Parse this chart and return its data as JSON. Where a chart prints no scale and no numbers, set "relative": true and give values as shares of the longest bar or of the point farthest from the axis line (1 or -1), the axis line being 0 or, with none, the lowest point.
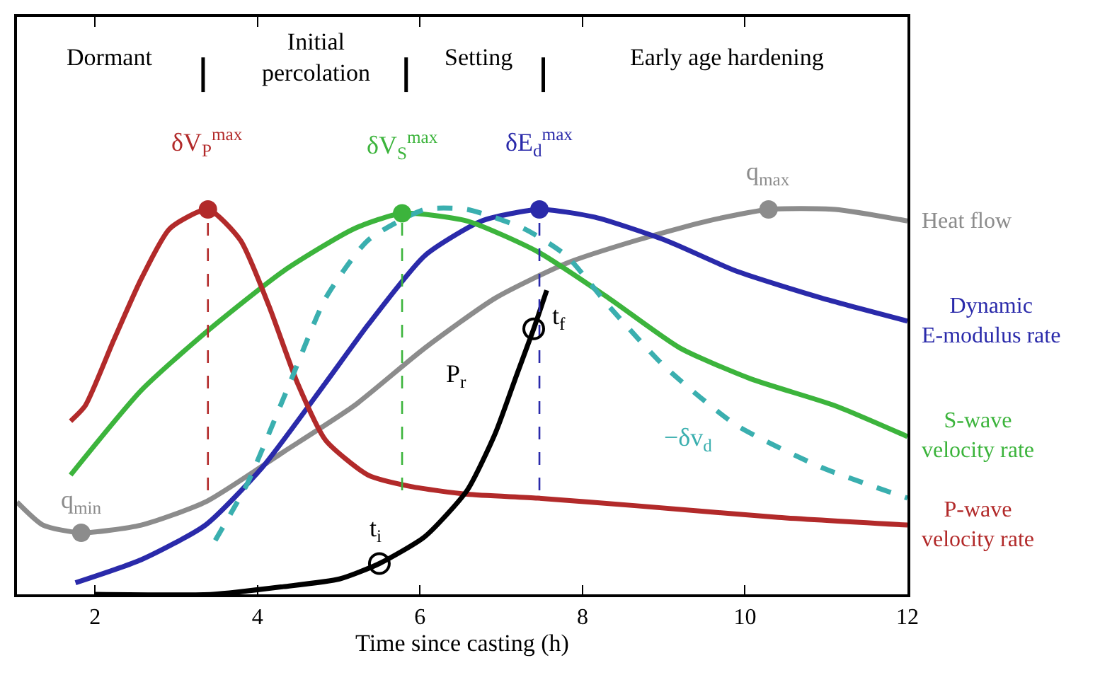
{
  "chart_data": {
    "type": "line",
    "relative": true,
    "xlabel": "Time since casting (h)",
    "xlim": [
      1.04,
      12
    ],
    "xticks": [
      2,
      4,
      6,
      8,
      10,
      12
    ],
    "grid": false,
    "legend": false,
    "tick_labels": "x",
    "series": [
      {
        "name": "Heat flow",
        "color": "#8c8c8c",
        "x": [
          1.04,
          1.36,
          1.83,
          2.57,
          3.36,
          4.32,
          5.19,
          6.06,
          6.93,
          7.8,
          8.67,
          9.54,
          10.29,
          11.11,
          12
        ],
        "values": [
          0.24,
          0.18,
          0.16,
          0.18,
          0.24,
          0.37,
          0.49,
          0.64,
          0.77,
          0.86,
          0.92,
          0.97,
          1.0,
          1.0,
          0.97
        ]
      },
      {
        "name": "Dynamic\nE-modulus rate",
        "color": "#2a2aaa",
        "x": [
          1.76,
          2.57,
          3.36,
          4.06,
          4.84,
          5.36,
          6.06,
          6.76,
          7.47,
          8.15,
          9.02,
          9.89,
          10.94,
          12
        ],
        "values": [
          0.03,
          0.09,
          0.18,
          0.33,
          0.55,
          0.7,
          0.88,
          0.97,
          1.0,
          0.98,
          0.92,
          0.84,
          0.77,
          0.71
        ]
      },
      {
        "name": "S-wave\nvelocity rate",
        "color": "#3cb43c",
        "x": [
          1.7,
          2.57,
          3.36,
          4.32,
          5.19,
          5.78,
          6.58,
          7.45,
          8.32,
          9.2,
          10.07,
          11.11,
          12
        ],
        "values": [
          0.31,
          0.53,
          0.68,
          0.84,
          0.95,
          0.99,
          0.97,
          0.89,
          0.77,
          0.64,
          0.56,
          0.49,
          0.41
        ]
      },
      {
        "name": "P-wave\nvelocity rate",
        "color": "#b22a2a",
        "x": [
          1.7,
          1.88,
          2.23,
          2.57,
          2.92,
          3.39,
          3.79,
          4.14,
          4.49,
          4.84,
          5.36,
          5.89,
          6.58,
          7.45,
          8.67,
          10.41,
          12
        ],
        "values": [
          0.45,
          0.49,
          0.66,
          0.82,
          0.95,
          1.0,
          0.92,
          0.75,
          0.55,
          0.4,
          0.31,
          0.28,
          0.26,
          0.25,
          0.23,
          0.2,
          0.18
        ]
      },
      {
        "color": "#3aafaf",
        "line_style": "dashed",
        "x": [
          3.48,
          3.88,
          4.4,
          4.84,
          5.36,
          6.06,
          6.58,
          7.28,
          7.8,
          8.32,
          9.02,
          9.89,
          10.94,
          12
        ],
        "values": [
          0.14,
          0.29,
          0.55,
          0.77,
          0.92,
          1.0,
          1.0,
          0.95,
          0.88,
          0.75,
          0.59,
          0.44,
          0.33,
          0.25
        ]
      },
      {
        "color": "#000000",
        "x": [
          2.0,
          3.45,
          4.32,
          5.01,
          5.5,
          6.06,
          6.58,
          6.93,
          7.19,
          7.4,
          7.56
        ],
        "values": [
          0.0,
          0.0,
          0.02,
          0.04,
          0.08,
          0.15,
          0.27,
          0.42,
          0.57,
          0.69,
          0.79
        ]
      },
      {
        "color": "#b22a2a",
        "line_style": "dashed",
        "x": [
          3.39,
          3.39
        ],
        "values": [
          0.27,
          1.0
        ]
      },
      {
        "color": "#3cb43c",
        "line_style": "dashed",
        "x": [
          5.78,
          5.78
        ],
        "values": [
          0.27,
          0.99
        ]
      },
      {
        "color": "#2a2aaa",
        "line_style": "dashed",
        "x": [
          7.47,
          7.47
        ],
        "values": [
          0.27,
          1.0
        ]
      },
      {
        "type": "scatter",
        "marker": "circle",
        "x": [
          3.39,
          5.78,
          7.47,
          1.83,
          10.29
        ],
        "values": [
          1.0,
          0.99,
          1.0,
          0.16,
          1.0
        ],
        "colors": [
          "#b22a2a",
          "#3cb43c",
          "#2a2aaa",
          "#8c8c8c",
          "#8c8c8c"
        ]
      },
      {
        "type": "scatter",
        "marker": "circle",
        "color": "#000000",
        "x": [
          5.5,
          7.4
        ],
        "values": [
          0.08,
          0.69
        ]
      }
    ],
    "annotations": [
      "Dormant",
      "Initial\npercolation",
      "Setting",
      "Early age hardening",
      {
        "text": "δV$_{P}$$^{max}$",
        "x": 3.39,
        "y": 1.0
      },
      {
        "text": "δV$_{S}$$^{max}$",
        "x": 5.78,
        "y": 0.99
      },
      {
        "text": "δE$_{d}$$^{max}$",
        "x": 7.47,
        "y": 1.0
      },
      {
        "text": "q$_{max}$",
        "x": 10.29,
        "y": 1.0
      },
      {
        "text": "q$_{min}$",
        "x": 1.83,
        "y": 0.16
      },
      {
        "text": "t$_{i}$",
        "x": 5.5,
        "y": 0.08
      },
      {
        "text": "t$_{f}$",
        "x": 7.4,
        "y": 0.69
      },
      {
        "text": "P$_{r}$",
        "x": 6.93,
        "y": 0.42
      },
      {
        "text": "−δv$_{d}$",
        "x": 9.89,
        "y": 0.44
      }
    ]
  }
}
